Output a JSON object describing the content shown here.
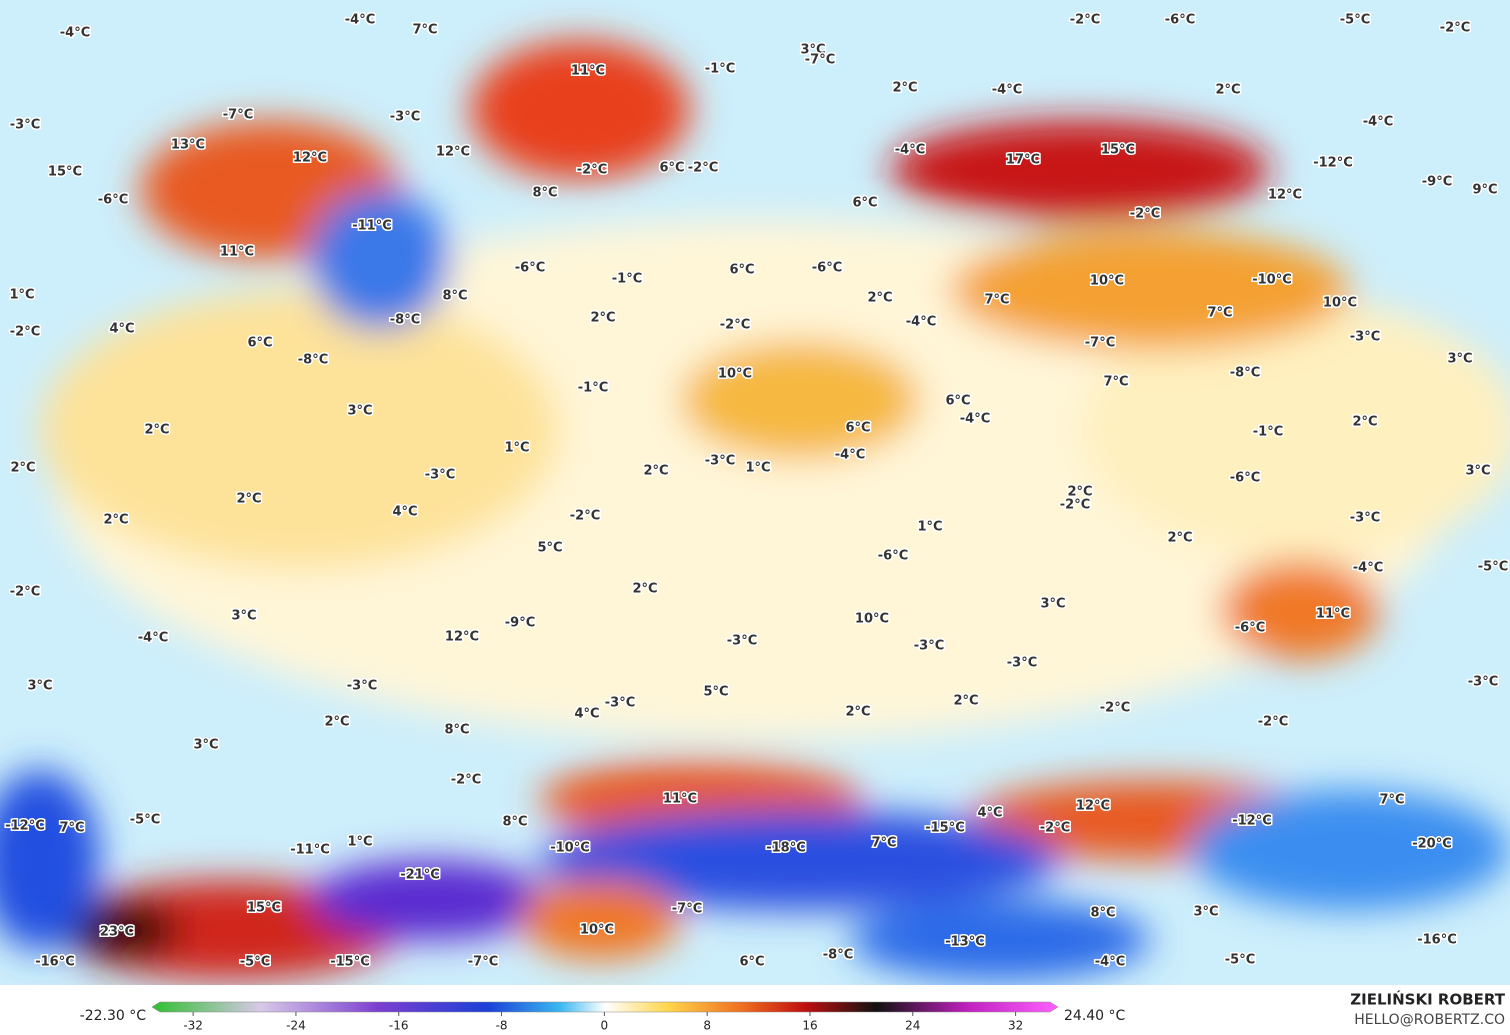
{
  "map": {
    "labels": [
      "-4°C",
      "-4°C",
      "7°C",
      "11°C",
      "-1°C",
      "3°C",
      "-7°C",
      "2°C",
      "-4°C",
      "-2°C",
      "-6°C",
      "-5°C",
      "-2°C",
      "2°C",
      "-4°C",
      "-3°C",
      "-7°C",
      "-3°C",
      "13°C",
      "12°C",
      "12°C",
      "-2°C",
      "6°C",
      "-2°C",
      "-4°C",
      "17°C",
      "15°C",
      "-12°C",
      "-9°C",
      "9°C",
      "15°C",
      "-6°C",
      "8°C",
      "6°C",
      "-2°C",
      "12°C",
      "-11°C",
      "11°C",
      "-6°C",
      "-1°C",
      "6°C",
      "-6°C",
      "10°C",
      "-10°C",
      "1°C",
      "8°C",
      "7°C",
      "2°C",
      "10°C",
      "-2°C",
      "4°C",
      "-8°C",
      "2°C",
      "-2°C",
      "-4°C",
      "7°C",
      "-3°C",
      "6°C",
      "-8°C",
      "-7°C",
      "3°C",
      "10°C",
      "-1°C",
      "7°C",
      "-8°C",
      "3°C",
      "6°C",
      "-4°C",
      "2°C",
      "2°C",
      "6°C",
      "-1°C",
      "1°C",
      "-4°C",
      "-3°C",
      "-3°C",
      "1°C",
      "2°C",
      "2°C",
      "3°C",
      "-6°C",
      "2°C",
      "2°C",
      "-2°C",
      "4°C",
      "-2°C",
      "2°C",
      "1°C",
      "-3°C",
      "2°C",
      "5°C",
      "-6°C",
      "-2°C",
      "2°C",
      "-4°C",
      "-5°C",
      "3°C",
      "3°C",
      "11°C",
      "-4°C",
      "12°C",
      "-9°C",
      "10°C",
      "-3°C",
      "-3°C",
      "-6°C",
      "-3°C",
      "3°C",
      "-3°C",
      "5°C",
      "-3°C",
      "2°C",
      "-3°C",
      "4°C",
      "2°C",
      "2°C",
      "-2°C",
      "-2°C",
      "3°C",
      "8°C",
      "-2°C",
      "11°C",
      "12°C",
      "7°C",
      "-12°C",
      "7°C",
      "-5°C",
      "8°C",
      "4°C",
      "-15°C",
      "-2°C",
      "-12°C",
      "-11°C",
      "1°C",
      "-10°C",
      "-18°C",
      "7°C",
      "-20°C",
      "-21°C",
      "15°C",
      "-7°C",
      "8°C",
      "3°C",
      "23°C",
      "10°C",
      "-13°C",
      "-16°C",
      "-16°C",
      "-5°C",
      "-15°C",
      "-7°C",
      "6°C",
      "-8°C",
      "-4°C",
      "-5°C"
    ]
  },
  "colorbar": {
    "min_label": "-22.30 °C",
    "max_label": "24.40 °C",
    "lim": [
      -35.2,
      35.3
    ],
    "ticks": [
      -32,
      -24,
      -16,
      -8,
      0,
      8,
      16,
      24,
      32
    ]
  },
  "credit": {
    "name": "ZIELIŃSKI ROBERT",
    "email": "HELLO@ROBERTZ.CO"
  }
}
